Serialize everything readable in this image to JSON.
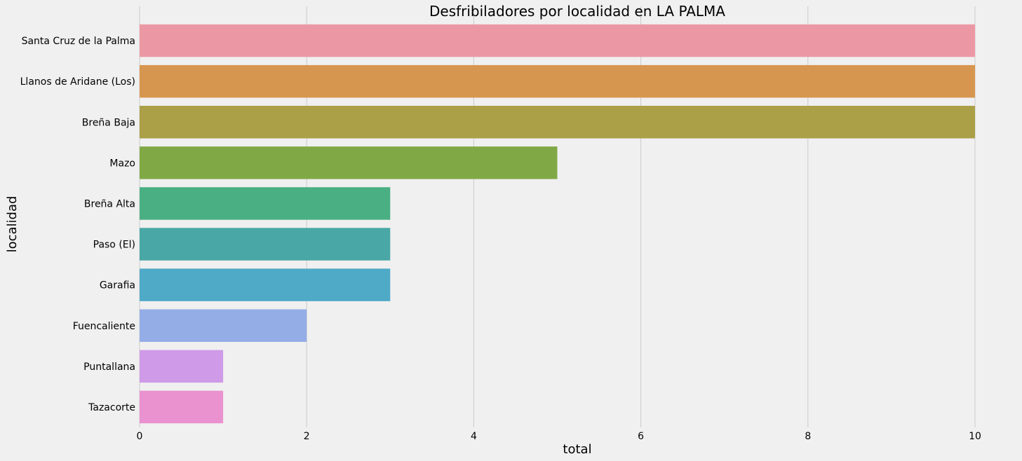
{
  "chart_data": {
    "type": "bar",
    "orientation": "horizontal",
    "title": "Desfribiladores por localidad en LA PALMA",
    "xlabel": "total",
    "ylabel": "localidad",
    "categories": [
      "Santa Cruz de la Palma",
      "Llanos de Aridane (Los)",
      "Breña Baja",
      "Mazo",
      "Breña Alta",
      "Paso (El)",
      "Garafia",
      "Fuencaliente",
      "Puntallana",
      "Tazacorte"
    ],
    "values": [
      10,
      10,
      10,
      5,
      3,
      3,
      3,
      2,
      1,
      1
    ],
    "colors": [
      "#ec98a4",
      "#d7964f",
      "#ab9f47",
      "#80a946",
      "#4aaf82",
      "#49a8a6",
      "#4faac7",
      "#95ade6",
      "#cf9ae8",
      "#ea91cf"
    ],
    "xlim": [
      0,
      10.3
    ],
    "xticks": [
      0,
      2,
      4,
      6,
      8,
      10
    ],
    "grid": "vertical",
    "background": "#f0f0f0"
  }
}
